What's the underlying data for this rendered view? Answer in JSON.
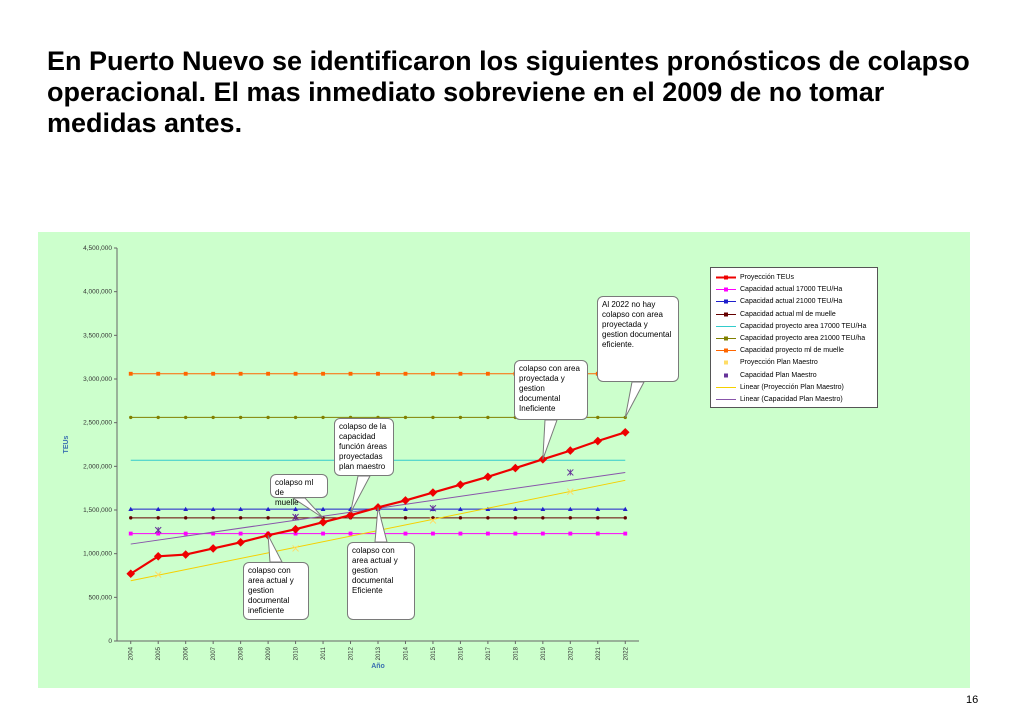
{
  "slide": {
    "title": "En Puerto Nuevo se identificaron los siguientes pronósticos de colapso operacional. El mas inmediato sobreviene en el 2009 de no tomar medidas antes.",
    "page_number": "16",
    "panel_color": "#ccffcc"
  },
  "chart_data": {
    "type": "line",
    "title": "",
    "xlabel": "Año",
    "ylabel": "TEUs",
    "categories": [
      "2004",
      "2005",
      "2006",
      "2007",
      "2008",
      "2009",
      "2010",
      "2011",
      "2012",
      "2013",
      "2014",
      "2015",
      "2016",
      "2017",
      "2018",
      "2019",
      "2020",
      "2021",
      "2022"
    ],
    "ylim": [
      0,
      4500000
    ],
    "yticks": [
      {
        "value": 0,
        "label": "0"
      },
      {
        "value": 500000,
        "label": "500,000"
      },
      {
        "value": 1000000,
        "label": "1,000,000"
      },
      {
        "value": 1500000,
        "label": "1,500,000"
      },
      {
        "value": 2000000,
        "label": "2,000,000"
      },
      {
        "value": 2500000,
        "label": "2,500,000"
      },
      {
        "value": 3000000,
        "label": "3,000,000"
      },
      {
        "value": 3500000,
        "label": "3,500,000"
      },
      {
        "value": 4000000,
        "label": "4,000,000"
      },
      {
        "value": 4500000,
        "label": "4,500,000"
      }
    ],
    "grid": false,
    "legend_position": "top-right",
    "series": [
      {
        "name": "Proyección TEUs",
        "color": "#ee0000",
        "marker": "diamond",
        "line": "solid-thick",
        "values": [
          770000,
          970000,
          990000,
          1060000,
          1130000,
          1210000,
          1280000,
          1360000,
          1440000,
          1530000,
          1610000,
          1700000,
          1790000,
          1880000,
          1980000,
          2080000,
          2180000,
          2290000,
          2390000
        ]
      },
      {
        "name": "Capacidad actual 17000 TEU/Ha",
        "color": "#ff00ff",
        "marker": "square",
        "line": "solid",
        "values": [
          1230000,
          1230000,
          1230000,
          1230000,
          1230000,
          1230000,
          1230000,
          1230000,
          1230000,
          1230000,
          1230000,
          1230000,
          1230000,
          1230000,
          1230000,
          1230000,
          1230000,
          1230000,
          1230000
        ]
      },
      {
        "name": "Capacidad actual 21000 TEU/Ha",
        "color": "#1f1fcc",
        "marker": "triangle",
        "line": "solid",
        "values": [
          1510000,
          1510000,
          1510000,
          1510000,
          1510000,
          1510000,
          1510000,
          1510000,
          1510000,
          1510000,
          1510000,
          1510000,
          1510000,
          1510000,
          1510000,
          1510000,
          1510000,
          1510000,
          1510000
        ]
      },
      {
        "name": "Capacidad actual ml de muelle",
        "color": "#660000",
        "marker": "circle",
        "line": "solid",
        "values": [
          1410000,
          1410000,
          1410000,
          1410000,
          1410000,
          1410000,
          1410000,
          1410000,
          1410000,
          1410000,
          1410000,
          1410000,
          1410000,
          1410000,
          1410000,
          1410000,
          1410000,
          1410000,
          1410000
        ]
      },
      {
        "name": "Capacidad proyecto area 17000 TEU/Ha",
        "color": "#33cccc",
        "marker": "none",
        "line": "solid",
        "values": [
          2070000,
          2070000,
          2070000,
          2070000,
          2070000,
          2070000,
          2070000,
          2070000,
          2070000,
          2070000,
          2070000,
          2070000,
          2070000,
          2070000,
          2070000,
          2070000,
          2070000,
          2070000,
          2070000
        ]
      },
      {
        "name": "Capacidad proyecto area 21000 TEU/ha",
        "color": "#808000",
        "marker": "circle",
        "line": "solid",
        "values": [
          2560000,
          2560000,
          2560000,
          2560000,
          2560000,
          2560000,
          2560000,
          2560000,
          2560000,
          2560000,
          2560000,
          2560000,
          2560000,
          2560000,
          2560000,
          2560000,
          2560000,
          2560000,
          2560000
        ]
      },
      {
        "name": "Capacidad proyecto ml de muelle",
        "color": "#ff6600",
        "marker": "square",
        "line": "solid",
        "values": [
          3060000,
          3060000,
          3060000,
          3060000,
          3060000,
          3060000,
          3060000,
          3060000,
          3060000,
          3060000,
          3060000,
          3060000,
          3060000,
          3060000,
          3060000,
          3060000,
          3060000,
          3060000,
          3060000
        ]
      },
      {
        "name": "Proyección Plan Maestro",
        "color": "#ffdd66",
        "marker": "x-small",
        "line": "none",
        "points": [
          {
            "x": "2005",
            "y": 760000
          },
          {
            "x": "2010",
            "y": 1060000
          },
          {
            "x": "2015",
            "y": 1380000
          },
          {
            "x": "2020",
            "y": 1710000
          }
        ]
      },
      {
        "name": "Capacidad Plan Maestro",
        "color": "#663399",
        "marker": "asterisk",
        "line": "none",
        "points": [
          {
            "x": "2005",
            "y": 1270000
          },
          {
            "x": "2010",
            "y": 1420000
          },
          {
            "x": "2015",
            "y": 1520000
          },
          {
            "x": "2020",
            "y": 1930000
          }
        ]
      },
      {
        "name": "Linear (Proyección Plan Maestro)",
        "color": "#f5d000",
        "marker": "none",
        "line": "trend",
        "trend": {
          "start": {
            "x": "2004",
            "y": 690000
          },
          "end": {
            "x": "2022",
            "y": 1840000
          }
        }
      },
      {
        "name": "Linear (Capacidad Plan Maestro)",
        "color": "#8855aa",
        "marker": "none",
        "line": "trend",
        "trend": {
          "start": {
            "x": "2004",
            "y": 1110000
          },
          "end": {
            "x": "2022",
            "y": 1930000
          }
        }
      }
    ],
    "annotations": [
      {
        "id": "ann1",
        "text": "colapso con\narea actual y\ngestion\ndocumental\nineficiente",
        "target": {
          "x": "2009",
          "y": 1210000
        }
      },
      {
        "id": "ann2",
        "text": "colapso ml de\nmuelle",
        "target": {
          "x": "2011",
          "y": 1410000
        }
      },
      {
        "id": "ann3",
        "text": "colapso de la\ncapacidad\nfunción áreas\nproyectadas\nplan maestro",
        "target": {
          "x": "2012",
          "y": 1470000
        }
      },
      {
        "id": "ann4",
        "text": "colapso con\narea actual y\ngestion\ndocumental\nEficiente",
        "target": {
          "x": "2013",
          "y": 1530000
        }
      },
      {
        "id": "ann5",
        "text": "colapso con area\nproyectada y\ngestion\ndocumental\nIneficiente",
        "target": {
          "x": "2019",
          "y": 2080000
        }
      },
      {
        "id": "ann6",
        "text": "Al 2022 no hay\ncolapso con area\nproyectada y\ngestion documental\neficiente.",
        "target": {
          "x": "2022",
          "y": 2560000
        }
      }
    ]
  }
}
